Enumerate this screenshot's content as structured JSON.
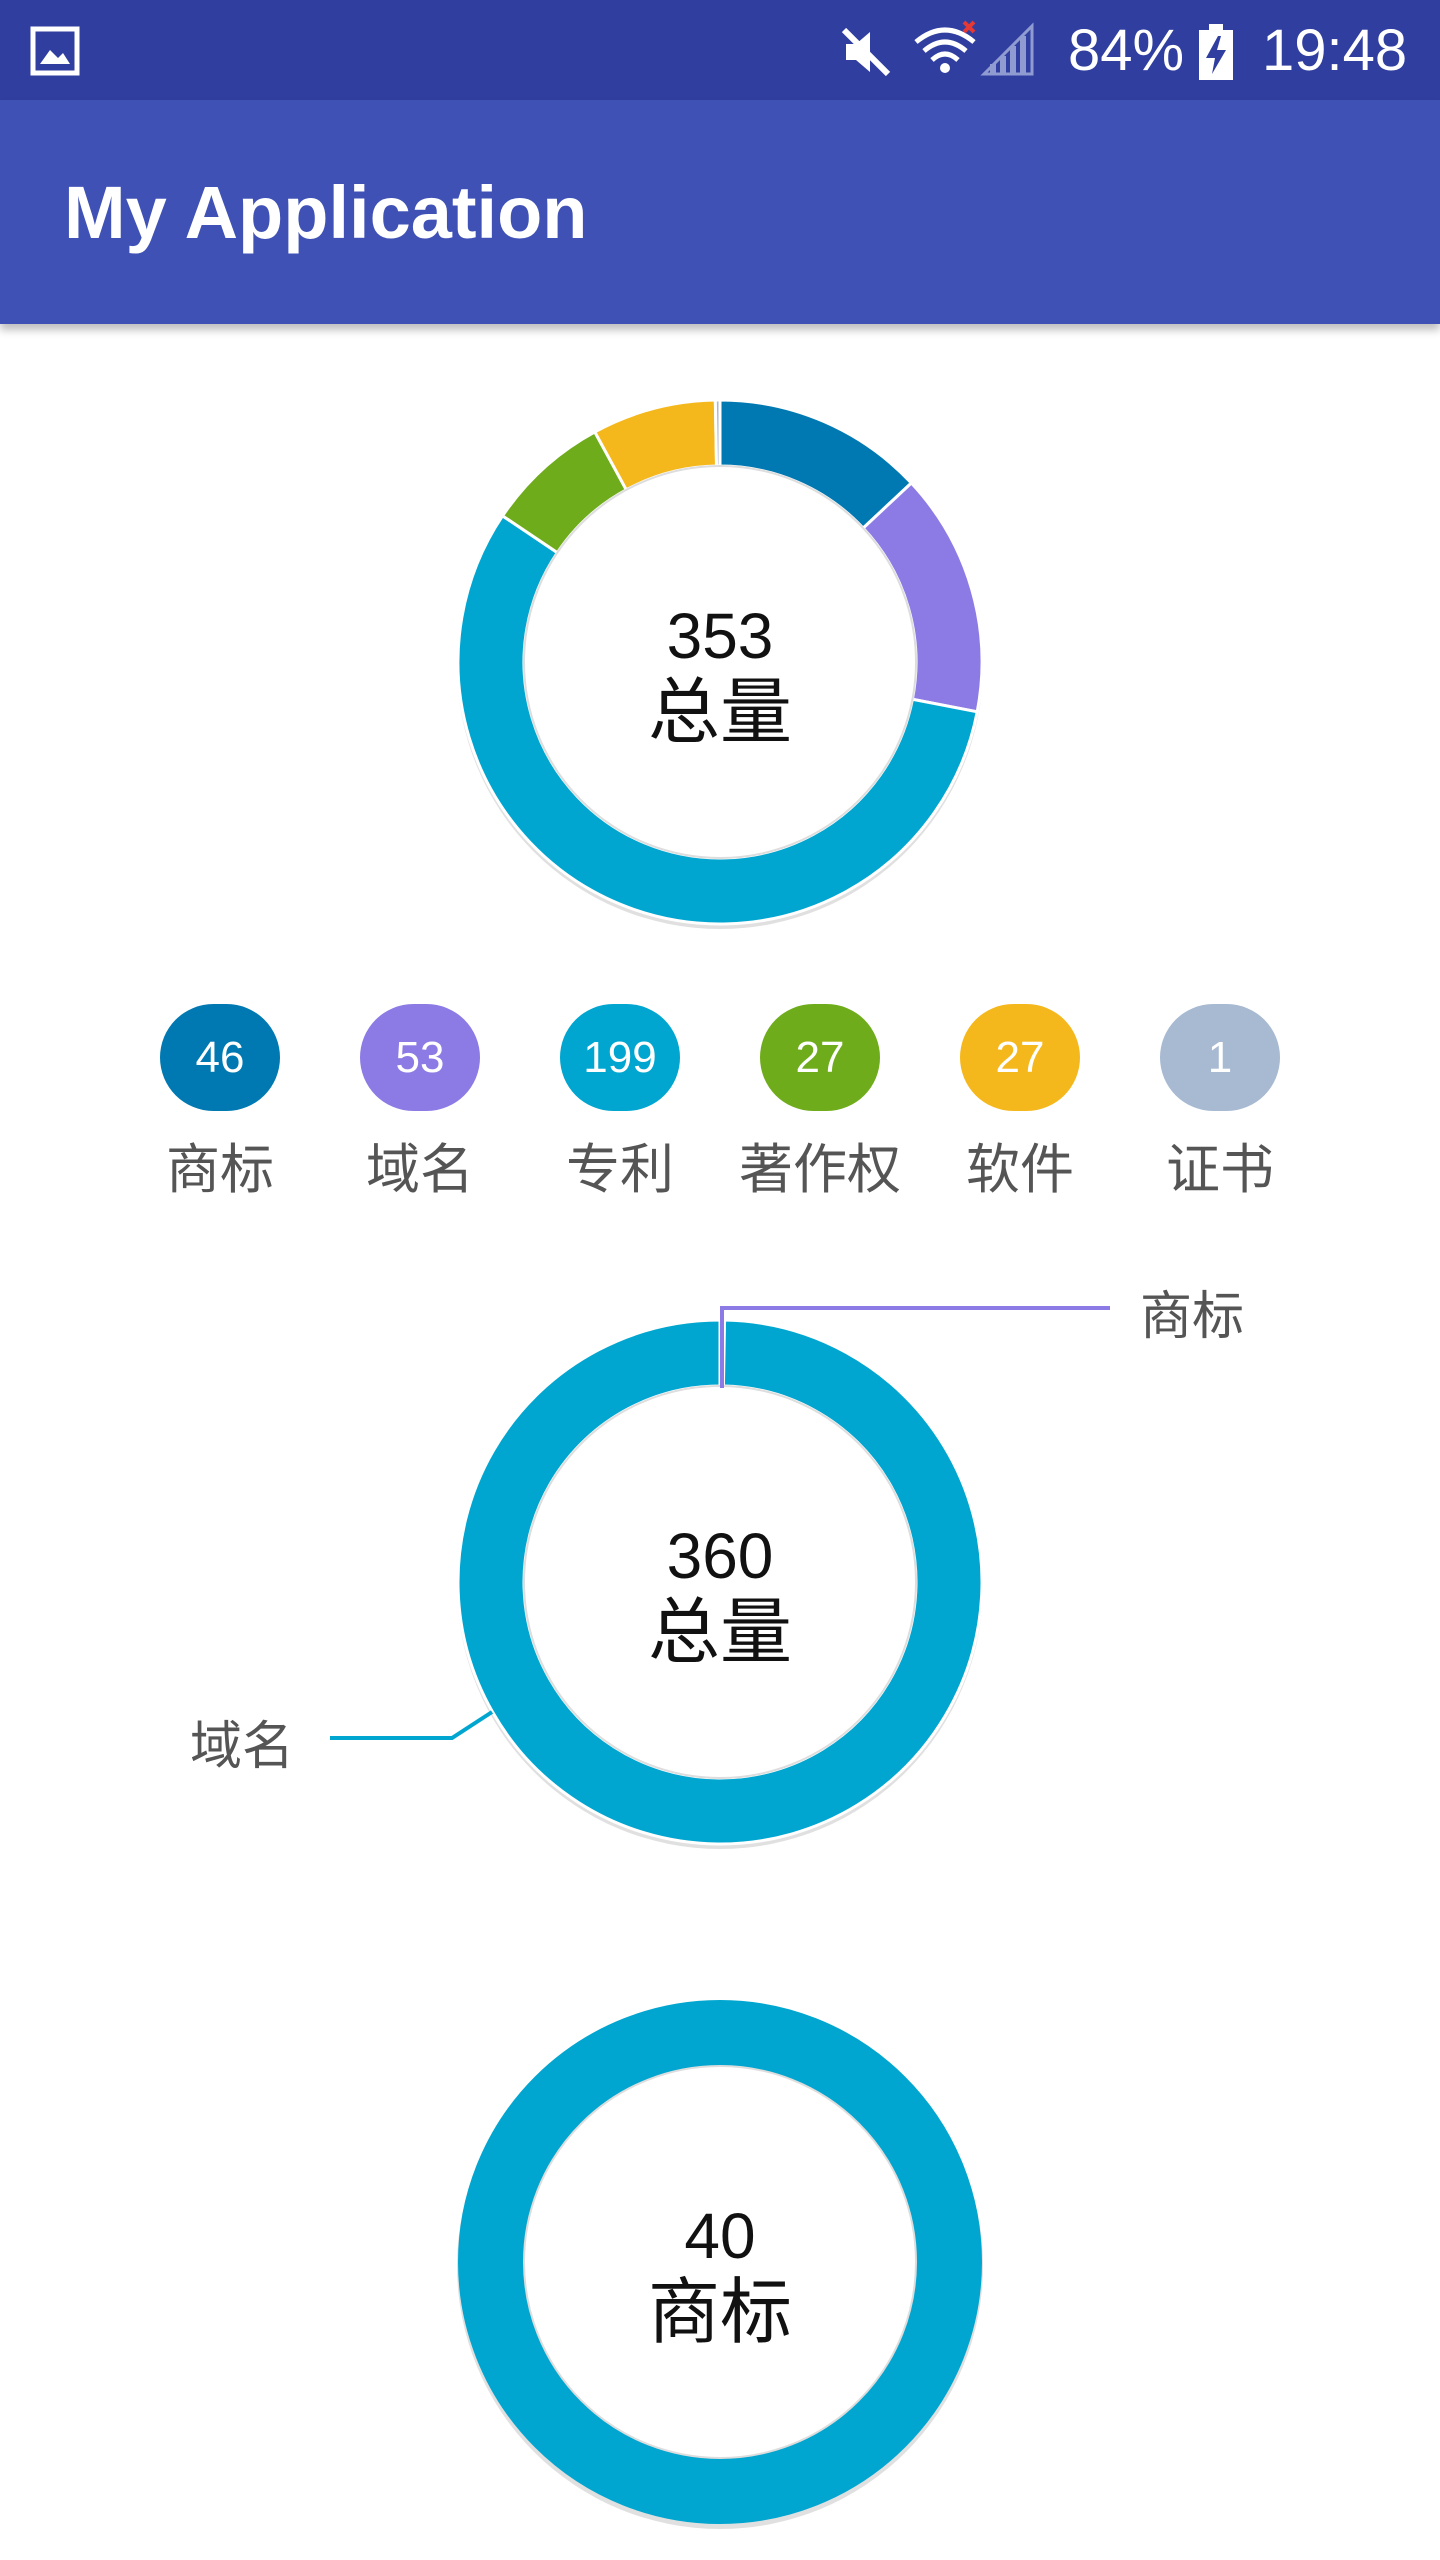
{
  "status_bar": {
    "battery": "84%",
    "time": "19:48",
    "icons": [
      "gallery-icon",
      "mute-icon",
      "wifi-icon",
      "signal-icon",
      "battery-charging-icon"
    ]
  },
  "app_bar": {
    "title": "My Application"
  },
  "colors": {
    "status_bar": "#303F9F",
    "app_bar": "#3F51B5",
    "trademark": "#0079B2",
    "domain": "#8D7BE5",
    "patent": "#00A6D0",
    "copyright": "#6FAC1C",
    "software": "#F5B81C",
    "certificate": "#A7BAD2"
  },
  "chart_data": [
    {
      "type": "pie",
      "style": "donut",
      "center_value": "353",
      "center_label": "总量",
      "labels": [
        "商标",
        "域名",
        "专利",
        "著作权",
        "软件",
        "证书"
      ],
      "values": [
        46,
        53,
        199,
        27,
        27,
        1
      ],
      "colors": [
        "#0079B2",
        "#8D7BE5",
        "#00A6D0",
        "#6FAC1C",
        "#F5B81C",
        "#A7BAD2"
      ]
    },
    {
      "type": "pie",
      "style": "donut",
      "center_value": "360",
      "center_label": "总量",
      "labels": [
        "商标",
        "域名"
      ],
      "values": [
        1,
        359
      ],
      "colors": [
        "#8D7BE5",
        "#00A6D0"
      ],
      "callouts": [
        "商标",
        "域名"
      ]
    },
    {
      "type": "pie",
      "style": "donut",
      "center_value": "40",
      "center_label": "商标",
      "labels": [
        "商标"
      ],
      "values": [
        40
      ],
      "colors": [
        "#00A6D0"
      ]
    }
  ],
  "legend": [
    {
      "count": "46",
      "label": "商标",
      "color": "#0079B2"
    },
    {
      "count": "53",
      "label": "域名",
      "color": "#8D7BE5"
    },
    {
      "count": "199",
      "label": "专利",
      "color": "#00A6D0"
    },
    {
      "count": "27",
      "label": "著作权",
      "color": "#6FAC1C"
    },
    {
      "count": "27",
      "label": "软件",
      "color": "#F5B81C"
    },
    {
      "count": "1",
      "label": "证书",
      "color": "#A7BAD2"
    }
  ]
}
